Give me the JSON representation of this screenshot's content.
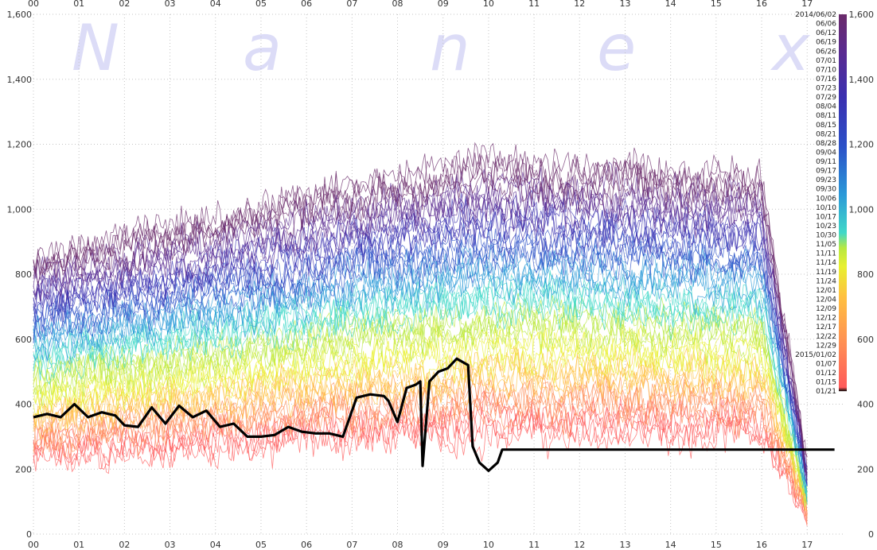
{
  "watermark": [
    "N",
    "a",
    "n",
    "e",
    "x"
  ],
  "chart_data": {
    "type": "line",
    "title": "",
    "xlabel": "",
    "ylabel": "",
    "x_ticks": [
      "00",
      "01",
      "02",
      "03",
      "04",
      "05",
      "06",
      "07",
      "08",
      "09",
      "10",
      "11",
      "12",
      "13",
      "14",
      "15",
      "16",
      "17"
    ],
    "y_ticks": [
      "0",
      "200",
      "400",
      "600",
      "800",
      "1,000",
      "1,200",
      "1,400",
      "1,600"
    ],
    "right_y_ticks": [
      "0",
      "200",
      "400",
      "600",
      "800",
      "1,000",
      "1,200",
      "1,400",
      "1,600"
    ],
    "xlim": [
      0,
      17.8
    ],
    "ylim": [
      0,
      1600
    ],
    "grid": true,
    "legend_position": "right",
    "legend_dates": [
      "2014/06/02",
      "06/06",
      "06/12",
      "06/19",
      "06/26",
      "07/01",
      "07/10",
      "07/16",
      "07/23",
      "07/29",
      "08/04",
      "08/11",
      "08/15",
      "08/21",
      "08/28",
      "09/04",
      "09/11",
      "09/17",
      "09/23",
      "09/30",
      "10/06",
      "10/10",
      "10/17",
      "10/23",
      "10/30",
      "11/05",
      "11/11",
      "11/14",
      "11/19",
      "11/24",
      "12/01",
      "12/04",
      "12/09",
      "12/12",
      "12/17",
      "12/22",
      "12/29",
      "2015/01/02",
      "01/07",
      "01/12",
      "01/15",
      "01/21"
    ],
    "colorbar_ticks": [
      "400",
      "600",
      "800",
      "1,000",
      "1,200",
      "1,400",
      "1,600"
    ],
    "colorbar_range": [
      440,
      1600
    ],
    "colorbar_colors": [
      "#000000",
      "#ff5a5a",
      "#ff8c55",
      "#ffc040",
      "#e8f030",
      "#b8e840",
      "#40d8c8",
      "#2a9ad8",
      "#2b50c8",
      "#3a2fb0",
      "#5a2a90",
      "#6a2a6a"
    ],
    "highlight_series": {
      "name": "2015/01/21",
      "color": "#000000",
      "x": [
        0,
        0.3,
        0.6,
        0.9,
        1.2,
        1.5,
        1.8,
        2.0,
        2.3,
        2.6,
        2.9,
        3.2,
        3.5,
        3.8,
        4.1,
        4.4,
        4.7,
        5.0,
        5.3,
        5.6,
        5.9,
        6.2,
        6.5,
        6.8,
        7.1,
        7.4,
        7.7,
        7.8,
        8.0,
        8.2,
        8.4,
        8.5,
        8.55,
        8.7,
        8.9,
        9.1,
        9.3,
        9.55,
        9.65,
        9.8,
        10.0,
        10.2,
        10.3,
        17.6
      ],
      "y": [
        360,
        370,
        360,
        400,
        360,
        375,
        365,
        335,
        330,
        390,
        340,
        395,
        360,
        380,
        330,
        340,
        300,
        300,
        305,
        330,
        315,
        310,
        310,
        300,
        420,
        430,
        425,
        410,
        345,
        450,
        460,
        470,
        210,
        470,
        500,
        510,
        540,
        520,
        270,
        220,
        195,
        220,
        260,
        260
      ]
    }
  }
}
